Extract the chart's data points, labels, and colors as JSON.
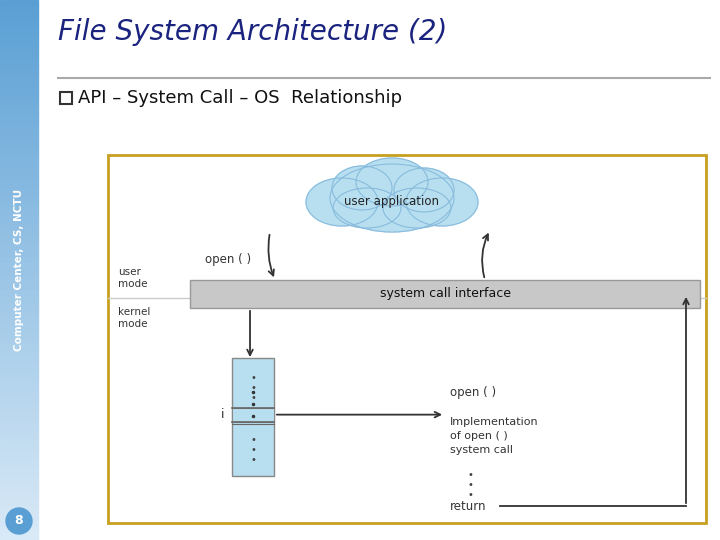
{
  "title": "File System Architecture (2)",
  "subtitle": "API – System Call – OS  Relationship",
  "sidebar_text": "Computer Center, CS, NCTU",
  "slide_number": "8",
  "bg_color": "#ffffff",
  "sidebar_color_top": "#5a9fd4",
  "sidebar_color_bottom": "#daeaf7",
  "title_color": "#1a237e",
  "subtitle_color": "#111111",
  "diagram_border_color": "#c8a020",
  "cloud_color": "#b8dff0",
  "cloud_edge_color": "#88bbdd",
  "syscall_box_color": "#c8c8c8",
  "table_box_color": "#b8dff0",
  "labels": {
    "user_application": "user application",
    "open_call": "open ( )",
    "system_call_interface": "system call interface",
    "user_mode": "user\nmode",
    "kernel_mode": "kernel\nmode",
    "i_label": "i",
    "open_impl": "open ( )",
    "impl_text": "Implementation\nof open ( )\nsystem call",
    "return": "return"
  }
}
